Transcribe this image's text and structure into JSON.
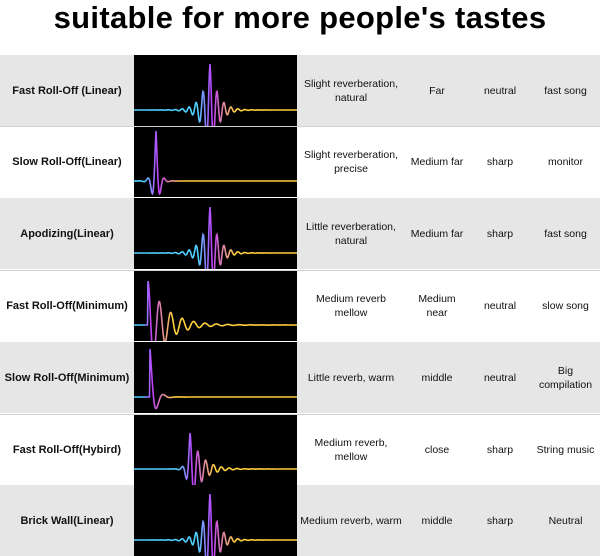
{
  "title": "suitable for more people's tastes",
  "rows": [
    {
      "filter": "Fast Roll-Off (Linear)",
      "character": "Slight reverberation, natural",
      "distance": "Far",
      "tone": "neutral",
      "use": "fast song",
      "wave": "linear-fast"
    },
    {
      "filter": "Slow Roll-Off(Linear)",
      "character": "Slight reverberation, precise",
      "distance": "Medium far",
      "tone": "sharp",
      "use": "monitor",
      "wave": "linear-slow-left"
    },
    {
      "filter": "Apodizing(Linear)",
      "character": "Little reverberation, natural",
      "distance": "Medium far",
      "tone": "sharp",
      "use": "fast song",
      "wave": "linear-fast"
    },
    {
      "filter": "Fast Roll-Off(Minimum)",
      "character": "Medium reverb mellow",
      "distance": "Medium near",
      "tone": "neutral",
      "use": "slow song",
      "wave": "minimum-fast"
    },
    {
      "filter": "Slow Roll-Off(Minimum)",
      "character": "Little reverb, warm",
      "distance": "middle",
      "tone": "neutral",
      "use": "Big compilation",
      "wave": "minimum-slow"
    },
    {
      "filter": "Fast Roll-Off(Hybird)",
      "character": "Medium reverb, mellow",
      "distance": "close",
      "tone": "sharp",
      "use": "String music",
      "wave": "hybrid"
    },
    {
      "filter": "Brick Wall(Linear)",
      "character": "Medium reverb, warm",
      "distance": "middle",
      "tone": "sharp",
      "use": "Neutral",
      "wave": "linear-fast"
    }
  ],
  "colors": {
    "shade": "#e6e6e6",
    "waveBackground": "#000000",
    "waveCyan": "#4fd1ff",
    "waveMagenta": "#c040ff",
    "waveYellow": "#ffd040"
  }
}
